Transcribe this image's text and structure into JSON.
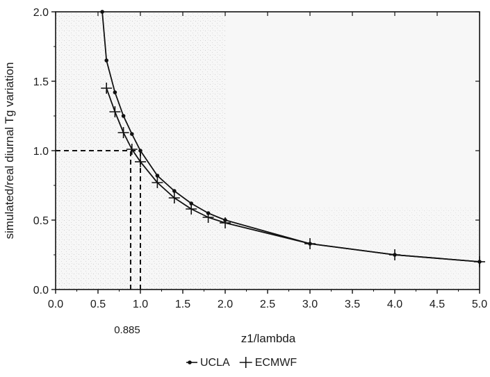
{
  "chart_data": {
    "type": "line",
    "title": "",
    "xlabel": "z1/lambda",
    "ylabel": "simulated/real diurnal Tg variation",
    "xlim": [
      0.0,
      5.0
    ],
    "ylim": [
      0.0,
      2.0
    ],
    "xticks": [
      "0.0",
      "0.5",
      "1.0",
      "1.5",
      "2.0",
      "2.5",
      "3.0",
      "3.5",
      "4.0",
      "4.5",
      "5.0"
    ],
    "yticks": [
      "0.0",
      "0.5",
      "1.0",
      "1.5",
      "2.0"
    ],
    "grid": false,
    "legend_position": "bottom-center",
    "series": [
      {
        "name": "UCLA",
        "marker": "dot",
        "x": [
          0.55,
          0.6,
          0.7,
          0.8,
          0.9,
          1.0,
          1.2,
          1.4,
          1.6,
          1.8,
          2.0,
          3.0,
          4.0,
          5.0
        ],
        "y": [
          2.0,
          1.65,
          1.42,
          1.25,
          1.12,
          1.0,
          0.82,
          0.71,
          0.62,
          0.55,
          0.5,
          0.33,
          0.25,
          0.2
        ]
      },
      {
        "name": "ECMWF",
        "marker": "plus",
        "x": [
          0.6,
          0.7,
          0.8,
          0.9,
          1.0,
          1.2,
          1.4,
          1.6,
          1.8,
          2.0,
          3.0,
          4.0,
          5.0
        ],
        "y": [
          1.45,
          1.28,
          1.13,
          1.01,
          0.92,
          0.77,
          0.66,
          0.58,
          0.52,
          0.48,
          0.33,
          0.25,
          0.2
        ]
      }
    ],
    "reference_lines": [
      {
        "orientation": "horizontal",
        "y": 1.0,
        "x_from": 0.0,
        "x_to": 1.0
      },
      {
        "orientation": "vertical",
        "x": 0.885,
        "y_from": 0.0,
        "y_to": 1.0
      },
      {
        "orientation": "vertical",
        "x": 1.0,
        "y_from": 0.0,
        "y_to": 1.0
      }
    ],
    "annotations": [
      {
        "text": "0.885",
        "x": 0.885
      }
    ]
  }
}
